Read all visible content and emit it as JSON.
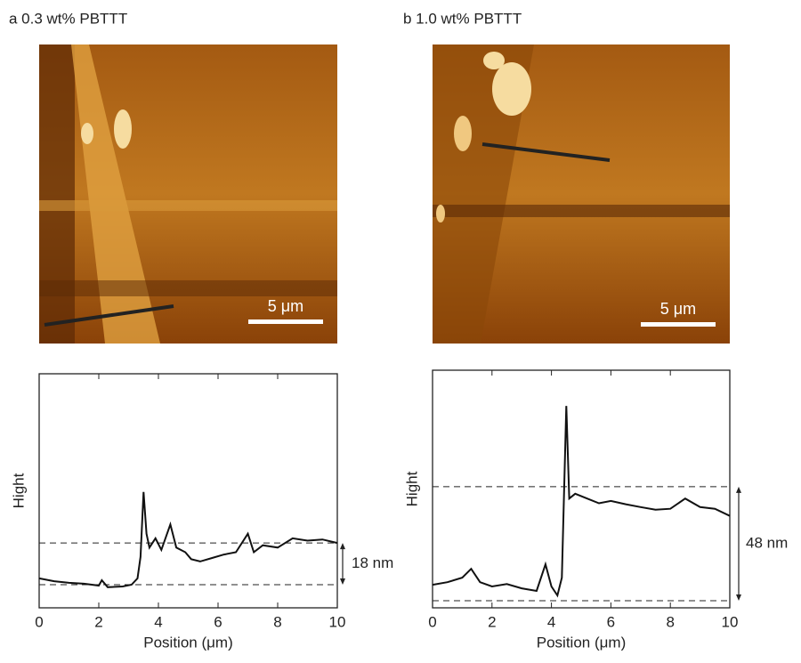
{
  "chart_data": [
    {
      "type": "line",
      "title": "a 0.3 wt% PBTTT",
      "scale_bar_label": "5 μm",
      "xlabel": "Position (μm)",
      "ylabel": "Hight",
      "annotation": "18 nm",
      "x": [
        0,
        0.5,
        1,
        1.5,
        2,
        2.1,
        2.3,
        2.8,
        3.1,
        3.3,
        3.4,
        3.5,
        3.6,
        3.7,
        3.9,
        4.1,
        4.4,
        4.6,
        4.9,
        5.1,
        5.4,
        5.8,
        6.2,
        6.6,
        7,
        7.2,
        7.5,
        8,
        8.5,
        9,
        9.5,
        10
      ],
      "values": [
        2.7,
        1.5,
        0.8,
        0.4,
        -0.4,
        1.9,
        -1.1,
        -0.8,
        0,
        2.7,
        12,
        40,
        22,
        16,
        20,
        15,
        26,
        16,
        14,
        11,
        10,
        11.5,
        13,
        14,
        22,
        14,
        17,
        16,
        20,
        19,
        19.5,
        18
      ],
      "color": "#111111",
      "hlines": [
        0,
        18
      ],
      "xlim": [
        0,
        10
      ],
      "xticks": [
        0,
        2,
        4,
        6,
        8,
        10
      ],
      "ylim": [
        -10,
        91
      ]
    },
    {
      "type": "line",
      "title": "b 1.0 wt% PBTTT",
      "scale_bar_label": "5 μm",
      "xlabel": "Position (μm)",
      "ylabel": "Hight",
      "annotation": "48 nm",
      "x": [
        0,
        0.5,
        1,
        1.3,
        1.6,
        2,
        2.5,
        3,
        3.5,
        3.8,
        4.0,
        4.2,
        4.35,
        4.5,
        4.6,
        4.8,
        5.2,
        5.6,
        6,
        6.5,
        7,
        7.5,
        8,
        8.5,
        9,
        9.5,
        10
      ],
      "values": [
        6.7,
        7.8,
        9.7,
        13.4,
        7.8,
        6,
        7,
        5.2,
        4.1,
        15.3,
        6,
        2.2,
        9.7,
        82,
        43,
        45,
        43,
        41,
        42,
        40.6,
        39.4,
        38.3,
        38.7,
        43,
        39.4,
        38.7,
        35.7
      ],
      "color": "#111111",
      "hlines": [
        0,
        48
      ],
      "xlim": [
        0,
        10
      ],
      "xticks": [
        0,
        2,
        4,
        6,
        8,
        10
      ],
      "ylim": [
        -3,
        97
      ]
    }
  ]
}
